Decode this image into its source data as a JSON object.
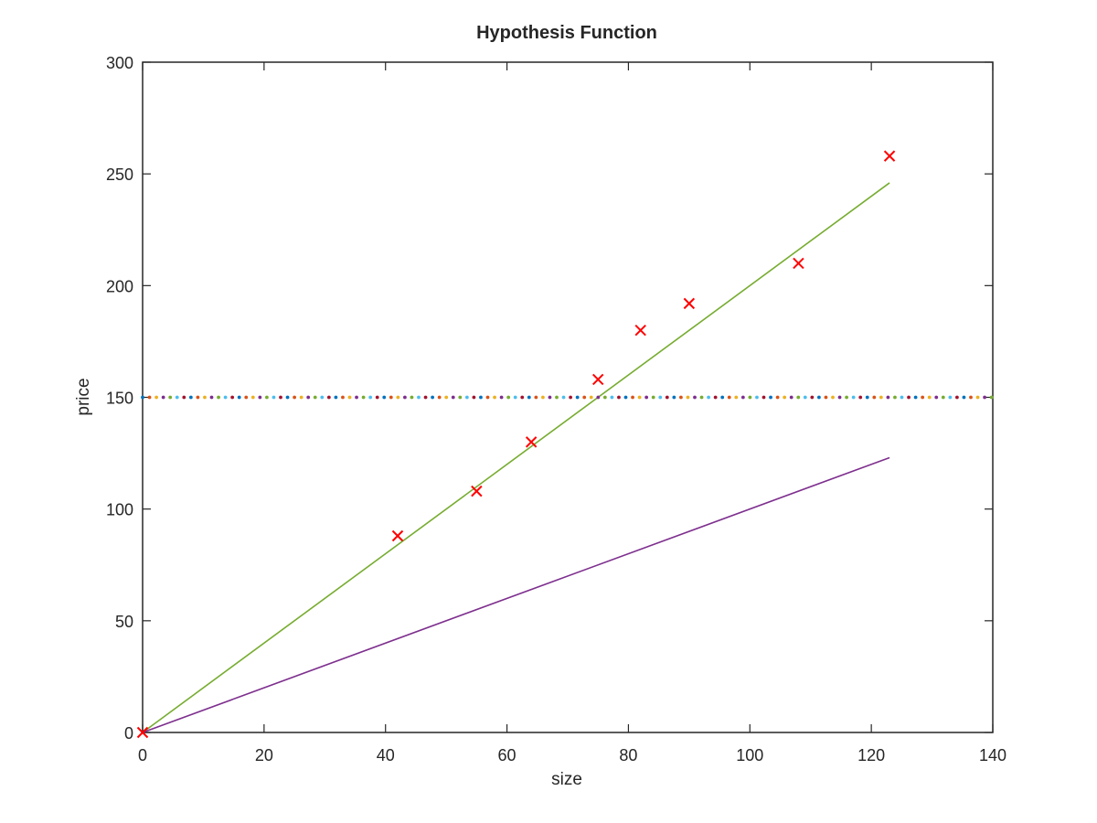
{
  "chart_data": {
    "type": "scatter",
    "title": "Hypothesis Function",
    "xlabel": "size",
    "ylabel": "price",
    "xlim": [
      0,
      140
    ],
    "ylim": [
      0,
      300
    ],
    "xticks": [
      "0",
      "20",
      "40",
      "60",
      "80",
      "100",
      "120",
      "140"
    ],
    "yticks": [
      "0",
      "50",
      "100",
      "150",
      "200",
      "250",
      "300"
    ],
    "grid": false,
    "legend": "none",
    "points": {
      "marker": "x",
      "color": "#ff0000",
      "x": [
        0,
        42,
        55,
        64,
        75,
        82,
        90,
        108,
        123
      ],
      "y": [
        0,
        88,
        108,
        130,
        158,
        180,
        192,
        210,
        258
      ]
    },
    "series": [
      {
        "type": "line",
        "color": "#77ac30",
        "x": [
          0,
          123
        ],
        "y": [
          0,
          246
        ]
      },
      {
        "type": "line",
        "color": "#7e2f8e",
        "x": [
          0,
          123
        ],
        "y": [
          0,
          123
        ]
      },
      {
        "type": "dotted-line",
        "colors": [
          "#0072bd",
          "#d95319",
          "#edb120",
          "#7e2f8e",
          "#77ac30",
          "#4dbeee",
          "#a2142f"
        ],
        "x": [
          0,
          140
        ],
        "y": [
          150,
          150
        ]
      }
    ]
  }
}
